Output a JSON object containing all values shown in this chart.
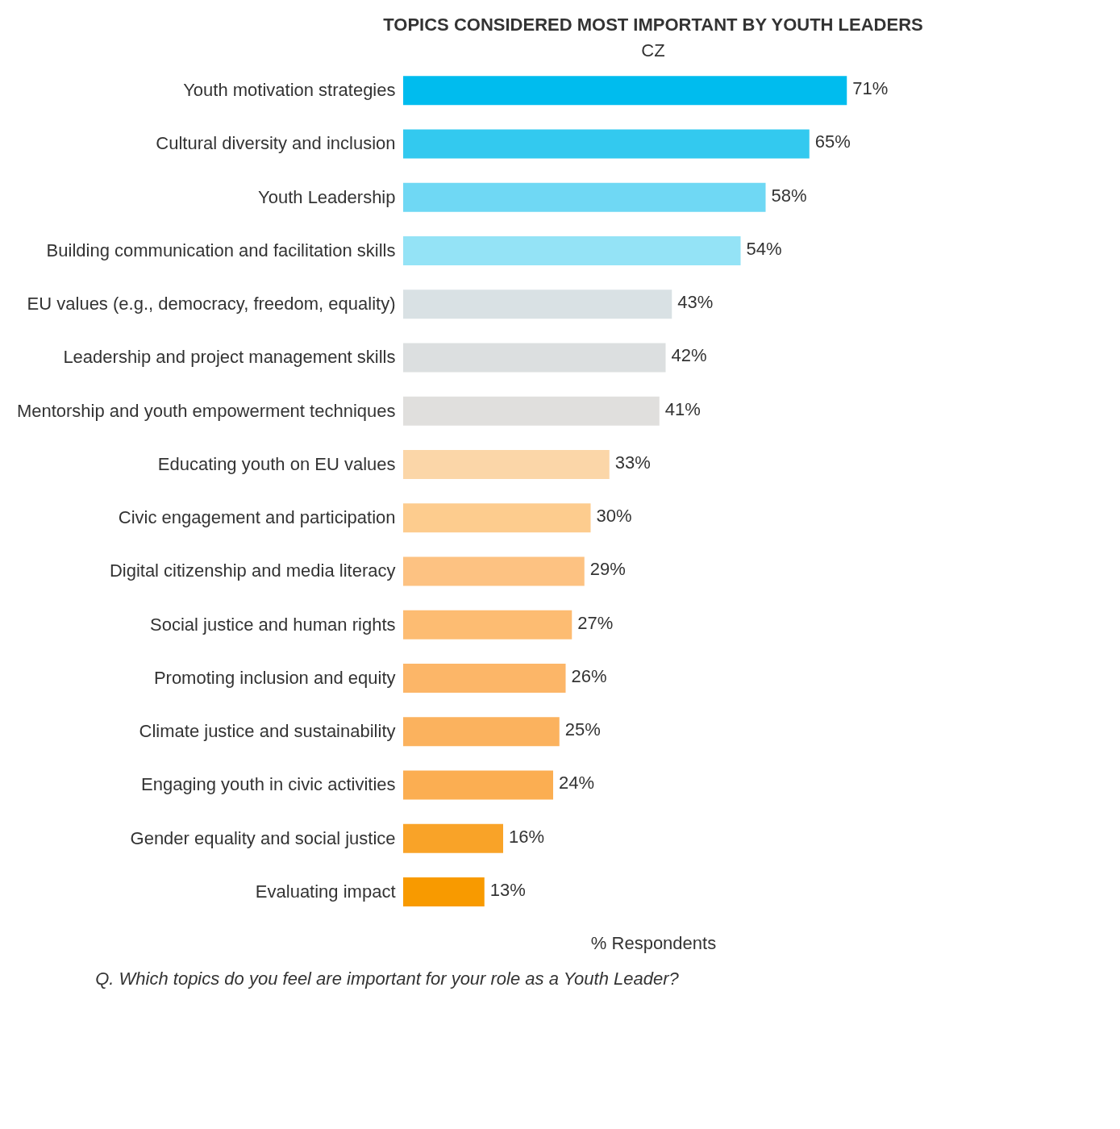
{
  "chart_data": {
    "type": "bar",
    "orientation": "horizontal",
    "title": "TOPICS CONSIDERED MOST IMPORTANT BY YOUTH LEADERS",
    "subtitle": "CZ",
    "xlabel": "% Respondents",
    "annotations": [
      "Q. Which topics do you feel are important for your role as a Youth Leader?"
    ],
    "categories": [
      "Youth motivation strategies",
      "Cultural diversity and inclusion",
      "Youth Leadership",
      "Building communication and facilitation skills",
      "EU values (e.g., democracy, freedom, equality)",
      "Leadership and project management skills",
      "Mentorship and youth empowerment techniques",
      "Educating youth on EU values",
      "Civic engagement and participation",
      "Digital citizenship and media literacy",
      "Social justice and human rights",
      "Promoting inclusion and equity",
      "Climate justice and sustainability",
      "Engaging youth in civic activities",
      "Gender equality and social justice",
      "Evaluating impact"
    ],
    "values": [
      71,
      65,
      58,
      54,
      43,
      42,
      41,
      33,
      30,
      29,
      27,
      26,
      25,
      24,
      16,
      13
    ],
    "colors": [
      "#00bcee",
      "#33c9ef",
      "#6fd8f4",
      "#94e3f6",
      "#d9e1e4",
      "#dcdfe0",
      "#e0dfdd",
      "#fbd6a8",
      "#fdcc8e",
      "#fdc282",
      "#fdbc72",
      "#fcb668",
      "#fbb25e",
      "#fbae52",
      "#f9a328",
      "#f89a00"
    ],
    "value_labels": [
      "71%",
      "65%",
      "58%",
      "54%",
      "43%",
      "42%",
      "41%",
      "33%",
      "30%",
      "29%",
      "27%",
      "26%",
      "25%",
      "24%",
      "16%",
      "13%"
    ],
    "grid": false
  }
}
